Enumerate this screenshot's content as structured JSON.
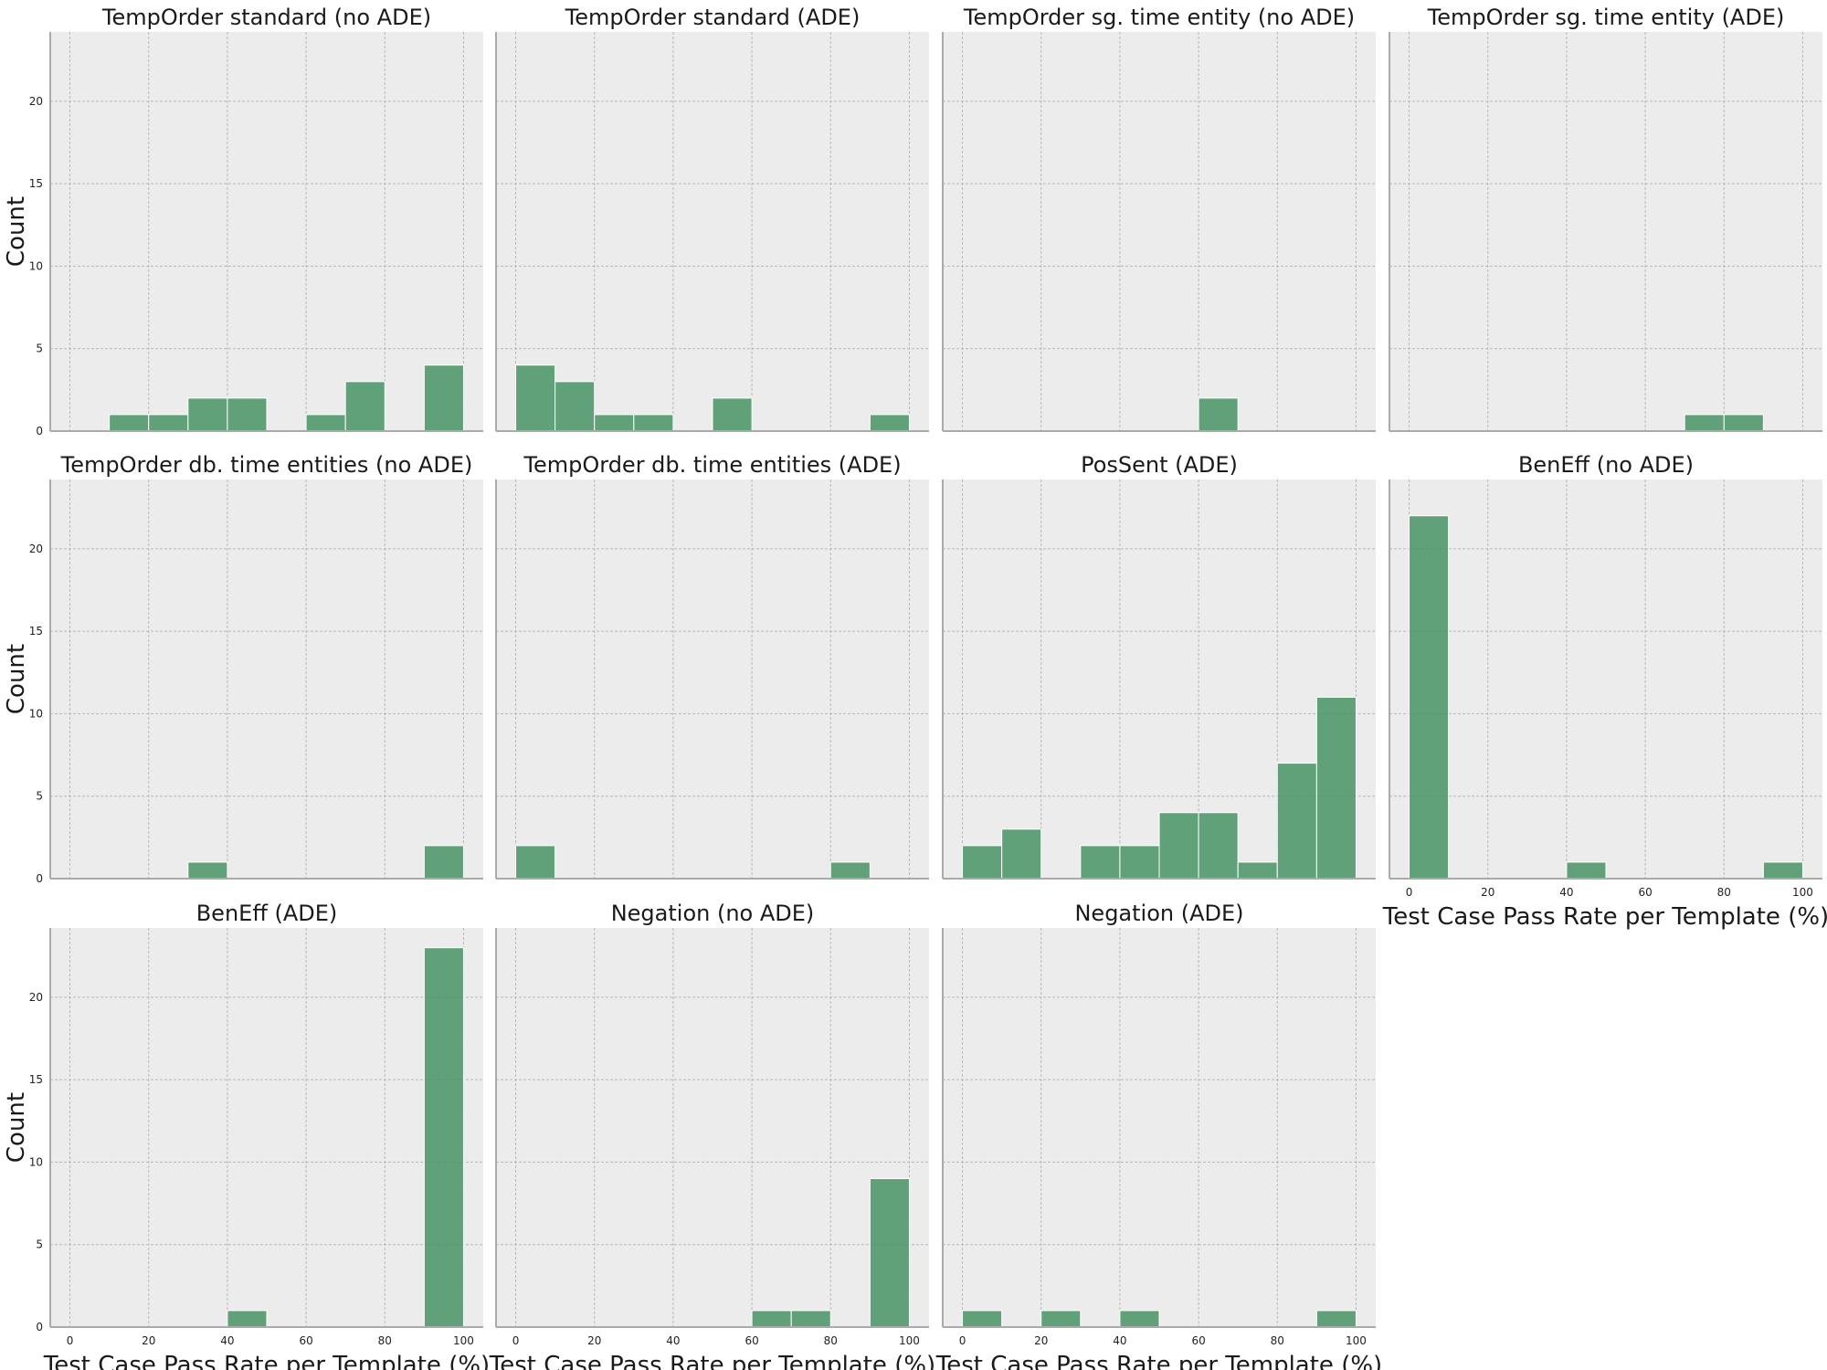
{
  "colors": {
    "bar": "#3f8f5e",
    "panel_bg": "#ececec",
    "grid": "#b8b8b8"
  },
  "chart_data": {
    "type": "bar",
    "figure_type": "histogram-grid",
    "xlabel": "Test Case Pass Rate per Template (%)",
    "ylabel": "Count",
    "xlim": [
      -5,
      105
    ],
    "ylim": [
      0,
      24.2
    ],
    "xticks": [
      0,
      20,
      40,
      60,
      80,
      100
    ],
    "yticks": [
      0,
      5,
      10,
      15,
      20
    ],
    "bin_width": 10,
    "bin_starts": [
      0,
      10,
      20,
      30,
      40,
      50,
      60,
      70,
      80,
      90
    ],
    "grid": true,
    "panels": [
      {
        "title": "TempOrder standard (no ADE)",
        "counts": [
          0,
          1,
          1,
          2,
          2,
          0,
          1,
          3,
          0,
          4
        ]
      },
      {
        "title": "TempOrder standard (ADE)",
        "counts": [
          4,
          3,
          1,
          1,
          0,
          2,
          0,
          0,
          0,
          1
        ]
      },
      {
        "title": "TempOrder sg. time entity (no ADE)",
        "counts": [
          0,
          0,
          0,
          0,
          0,
          0,
          2,
          0,
          0,
          0
        ]
      },
      {
        "title": "TempOrder sg. time entity (ADE)",
        "counts": [
          0,
          0,
          0,
          0,
          0,
          0,
          0,
          1,
          1,
          0
        ]
      },
      {
        "title": "TempOrder db. time entities (no ADE)",
        "counts": [
          0,
          0,
          0,
          1,
          0,
          0,
          0,
          0,
          0,
          2
        ]
      },
      {
        "title": "TempOrder db. time entities (ADE)",
        "counts": [
          2,
          0,
          0,
          0,
          0,
          0,
          0,
          0,
          1,
          0
        ]
      },
      {
        "title": "PosSent (ADE)",
        "counts": [
          2,
          3,
          0,
          2,
          2,
          4,
          4,
          1,
          7,
          11
        ]
      },
      {
        "title": "BenEff (no ADE)",
        "counts": [
          22,
          0,
          0,
          0,
          1,
          0,
          0,
          0,
          0,
          1
        ]
      },
      {
        "title": "BenEff (ADE)",
        "counts": [
          0,
          0,
          0,
          0,
          1,
          0,
          0,
          0,
          0,
          23
        ]
      },
      {
        "title": "Negation (no ADE)",
        "counts": [
          0,
          0,
          0,
          0,
          0,
          0,
          1,
          1,
          0,
          9
        ]
      },
      {
        "title": "Negation (ADE)",
        "counts": [
          1,
          0,
          1,
          0,
          1,
          0,
          0,
          0,
          0,
          1
        ]
      }
    ]
  }
}
